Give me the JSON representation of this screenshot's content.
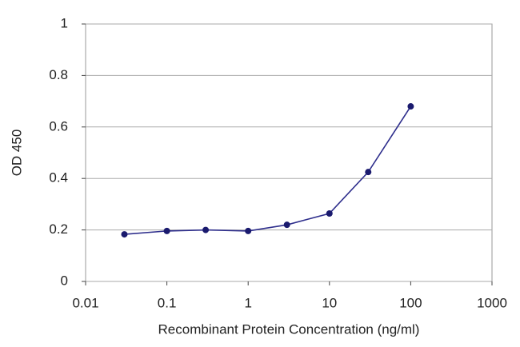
{
  "chart_data": {
    "type": "line",
    "xlabel": "Recombinant Protein Concentration (ng/ml)",
    "ylabel": "OD 450",
    "xscale": "log",
    "x": [
      0.03,
      0.1,
      0.3,
      1,
      3,
      10,
      30,
      100
    ],
    "series": [
      {
        "color": "#2e2e8c",
        "values": [
          0.183,
          0.196,
          0.2,
          0.196,
          0.22,
          0.264,
          0.425,
          0.68
        ]
      }
    ],
    "xlim": [
      0.01,
      1000
    ],
    "xticks": [
      0.01,
      0.1,
      1,
      10,
      100,
      1000
    ],
    "ylim": [
      0,
      1
    ],
    "yticks": [
      0,
      0.2,
      0.4,
      0.6,
      0.8,
      1
    ],
    "grid": true
  }
}
